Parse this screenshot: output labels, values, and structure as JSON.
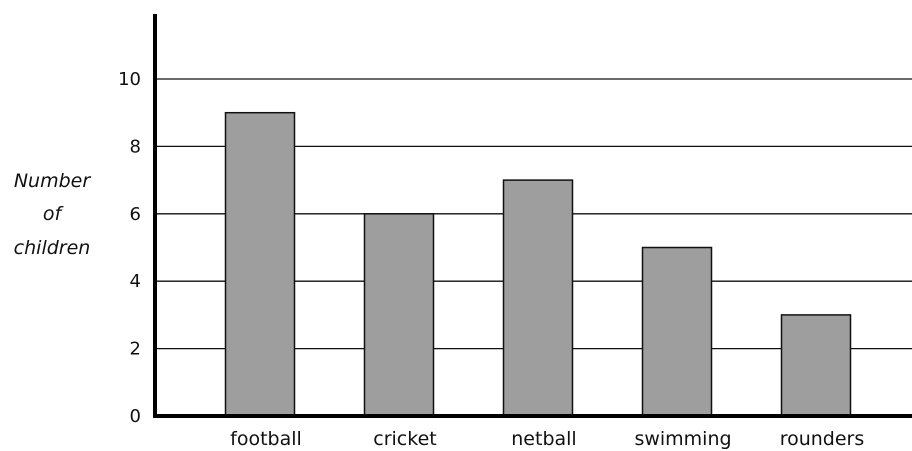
{
  "chart_data": {
    "type": "bar",
    "categories": [
      "football",
      "cricket",
      "netball",
      "swimming",
      "rounders"
    ],
    "values": [
      9,
      6,
      7,
      5,
      3
    ],
    "ylabel": "Number of children",
    "ylabel_lines": [
      "Number",
      "of",
      "children"
    ],
    "xlabel": "",
    "ylim": [
      0,
      12
    ],
    "yticks": [
      0,
      2,
      4,
      6,
      8,
      10
    ],
    "grid": true,
    "bar_color": "#9e9e9e",
    "edge_color": "#111111"
  }
}
